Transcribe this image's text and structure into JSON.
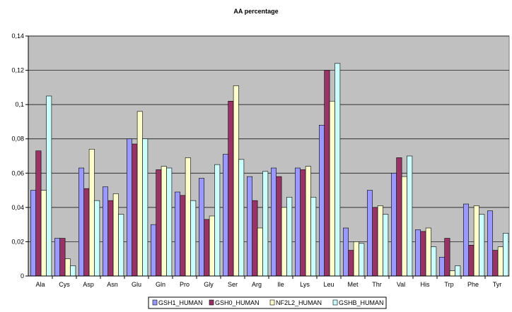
{
  "chart_data": {
    "type": "bar",
    "title": "AA percentage",
    "xlabel": "",
    "ylabel": "",
    "ylim": [
      0,
      0.14
    ],
    "y_ticks": [
      "0",
      "0,02",
      "0,04",
      "0,06",
      "0,08",
      "0,1",
      "0,12",
      "0,14"
    ],
    "grid": true,
    "legend_position": "bottom",
    "categories": [
      "Ala",
      "Cys",
      "Asp",
      "Asn",
      "Glu",
      "Gln",
      "Pro",
      "Gly",
      "Ser",
      "Arg",
      "Ile",
      "Lys",
      "Leu",
      "Met",
      "Thr",
      "Val",
      "His",
      "Trp",
      "Phe",
      "Tyr"
    ],
    "series": [
      {
        "name": "GSH1_HUMAN",
        "color": "#9999ff",
        "values": [
          0.05,
          0.022,
          0.063,
          0.052,
          0.08,
          0.03,
          0.049,
          0.057,
          0.071,
          0.058,
          0.063,
          0.063,
          0.088,
          0.028,
          0.05,
          0.06,
          0.027,
          0.011,
          0.042,
          0.038
        ]
      },
      {
        "name": "GSH0_HUMAN",
        "color": "#993366",
        "values": [
          0.073,
          0.022,
          0.051,
          0.044,
          0.077,
          0.062,
          0.047,
          0.033,
          0.102,
          0.044,
          0.058,
          0.062,
          0.12,
          0.015,
          0.04,
          0.069,
          0.026,
          0.022,
          0.018,
          0.015
        ]
      },
      {
        "name": "NF2L2_HUMAN",
        "color": "#ffffcc",
        "values": [
          0.05,
          0.01,
          0.074,
          0.048,
          0.096,
          0.064,
          0.069,
          0.035,
          0.111,
          0.028,
          0.04,
          0.064,
          0.102,
          0.02,
          0.041,
          0.058,
          0.028,
          0.003,
          0.041,
          0.017
        ]
      },
      {
        "name": "GSHB_HUMAN",
        "color": "#ccffff",
        "values": [
          0.105,
          0.006,
          0.044,
          0.036,
          0.08,
          0.063,
          0.044,
          0.065,
          0.068,
          0.061,
          0.046,
          0.046,
          0.124,
          0.019,
          0.036,
          0.07,
          0.017,
          0.006,
          0.036,
          0.025
        ]
      }
    ]
  }
}
